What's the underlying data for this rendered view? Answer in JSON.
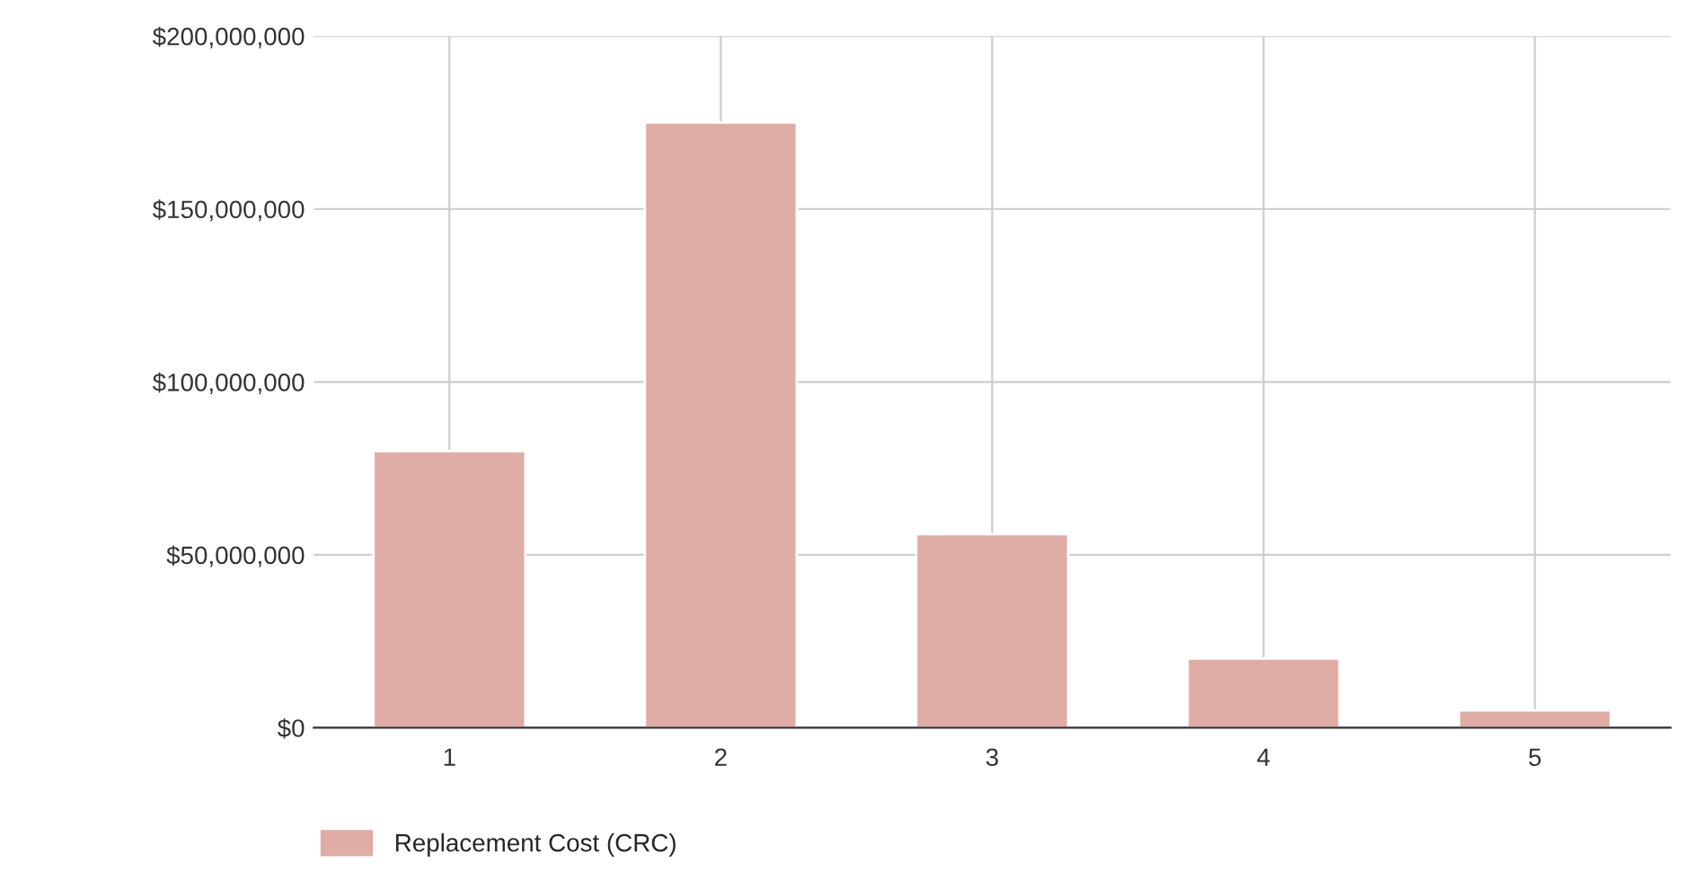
{
  "chart_data": {
    "type": "bar",
    "categories": [
      "1",
      "2",
      "3",
      "4",
      "5"
    ],
    "series": [
      {
        "name": "Replacement Cost (CRC)",
        "color": "#e0aca6",
        "values": [
          80000000,
          175000000,
          56000000,
          20000000,
          5000000
        ]
      }
    ],
    "ylim": [
      0,
      200000000
    ],
    "yticks": [
      {
        "value": 0,
        "label": "$0"
      },
      {
        "value": 50000000,
        "label": "$50,000,000"
      },
      {
        "value": 100000000,
        "label": "$100,000,000"
      },
      {
        "value": 150000000,
        "label": "$150,000,000"
      },
      {
        "value": 200000000,
        "label": "$200,000,000"
      }
    ],
    "grid": true,
    "legend": "bottom left"
  }
}
